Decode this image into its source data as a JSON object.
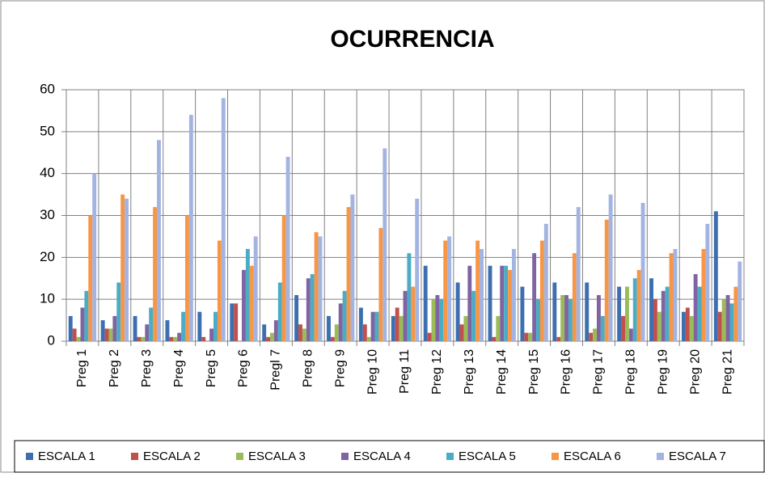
{
  "chart_data": {
    "type": "bar",
    "title": "OCURRENCIA",
    "categories": [
      "Preg 1",
      "Preg 2",
      "Preg 3",
      "Preg 4",
      "Preg 5",
      "Preg 6",
      "Pregl 7",
      "Preg 8",
      "Preg 9",
      "Preg 10",
      "Preg 11",
      "Preg 12",
      "Preg 13",
      "Preg 14",
      "Preg 15",
      "Preg 16",
      "Preg 17",
      "Preg 18",
      "Preg 19",
      "Preg 20",
      "Preg 21"
    ],
    "series": [
      {
        "name": "ESCALA 1",
        "color": "#3d6fb0",
        "values": [
          6,
          5,
          6,
          5,
          7,
          9,
          4,
          11,
          6,
          8,
          6,
          18,
          14,
          18,
          13,
          14,
          14,
          13,
          15,
          7,
          31
        ]
      },
      {
        "name": "ESCALA 2",
        "color": "#c0504d",
        "values": [
          3,
          3,
          1,
          1,
          1,
          9,
          1,
          4,
          1,
          4,
          8,
          2,
          4,
          1,
          2,
          1,
          2,
          6,
          10,
          8,
          7
        ]
      },
      {
        "name": "ESCALA 3",
        "color": "#9bbb59",
        "values": [
          1,
          3,
          1,
          1,
          0,
          0,
          2,
          3,
          4,
          1,
          6,
          10,
          6,
          6,
          2,
          11,
          3,
          13,
          7,
          6,
          10
        ]
      },
      {
        "name": "ESCALA 4",
        "color": "#8064a2",
        "values": [
          8,
          6,
          4,
          2,
          3,
          17,
          5,
          15,
          9,
          7,
          12,
          11,
          18,
          18,
          21,
          11,
          11,
          3,
          12,
          16,
          11
        ]
      },
      {
        "name": "ESCALA 5",
        "color": "#4bacc6",
        "values": [
          12,
          14,
          8,
          7,
          7,
          22,
          14,
          16,
          12,
          7,
          21,
          10,
          12,
          18,
          10,
          10,
          6,
          15,
          13,
          13,
          9
        ]
      },
      {
        "name": "ESCALA 6",
        "color": "#f79646",
        "values": [
          30,
          35,
          32,
          30,
          24,
          18,
          30,
          26,
          32,
          27,
          13,
          24,
          24,
          17,
          24,
          21,
          29,
          17,
          21,
          22,
          13
        ]
      },
      {
        "name": "ESCALA 7",
        "color": "#a3b4e2",
        "values": [
          40,
          34,
          48,
          54,
          58,
          25,
          44,
          25,
          35,
          46,
          34,
          25,
          22,
          22,
          28,
          32,
          35,
          33,
          22,
          28,
          19
        ]
      }
    ],
    "ylim": [
      0,
      60
    ],
    "yticks": [
      0,
      10,
      20,
      30,
      40,
      50,
      60
    ],
    "grid": true,
    "legend": "bottom"
  }
}
